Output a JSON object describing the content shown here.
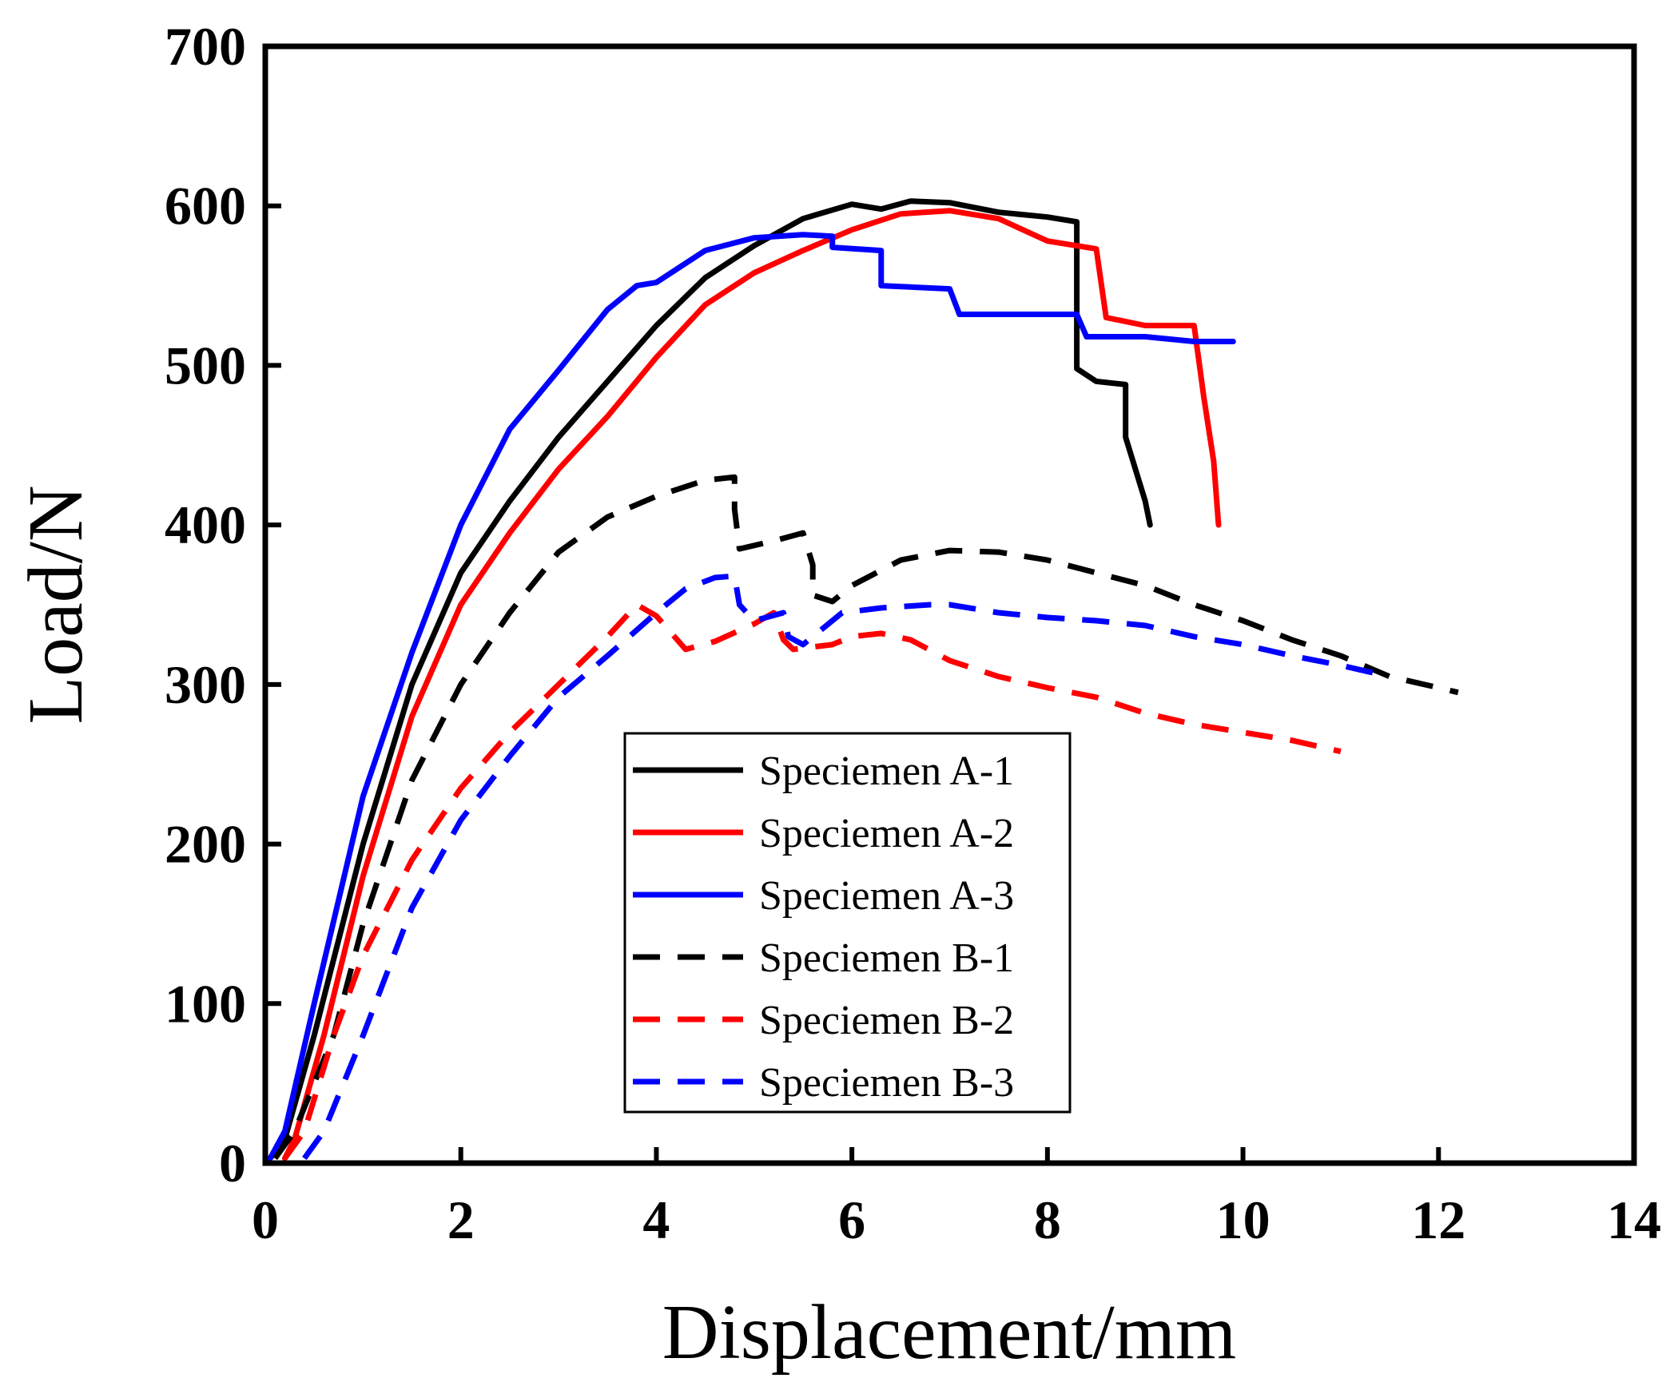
{
  "chart_data": {
    "type": "line",
    "title": "",
    "xlabel": "Displacement/mm",
    "ylabel": "Load/N",
    "xlim": [
      0,
      14
    ],
    "ylim": [
      0,
      700
    ],
    "xticks": [
      0,
      2,
      4,
      6,
      8,
      10,
      12,
      14
    ],
    "yticks": [
      0,
      100,
      200,
      300,
      400,
      500,
      600,
      700
    ],
    "grid": false,
    "legend_position": "center",
    "series": [
      {
        "name": "Speciemen A-1",
        "color": "#000000",
        "style": "solid",
        "points": [
          [
            0.05,
            3
          ],
          [
            0.2,
            15
          ],
          [
            0.5,
            80
          ],
          [
            1.0,
            200
          ],
          [
            1.5,
            300
          ],
          [
            2.0,
            370
          ],
          [
            2.5,
            415
          ],
          [
            3.0,
            455
          ],
          [
            3.5,
            490
          ],
          [
            4.0,
            525
          ],
          [
            4.5,
            555
          ],
          [
            5.0,
            575
          ],
          [
            5.5,
            592
          ],
          [
            6.0,
            601
          ],
          [
            6.3,
            598
          ],
          [
            6.6,
            603
          ],
          [
            7.0,
            602
          ],
          [
            7.5,
            596
          ],
          [
            8.0,
            593
          ],
          [
            8.3,
            590
          ],
          [
            8.3,
            498
          ],
          [
            8.5,
            490
          ],
          [
            8.8,
            488
          ],
          [
            8.8,
            455
          ],
          [
            9.0,
            415
          ],
          [
            9.05,
            400
          ]
        ]
      },
      {
        "name": "Speciemen A-2",
        "color": "#ff0000",
        "style": "solid",
        "points": [
          [
            0.2,
            3
          ],
          [
            0.3,
            15
          ],
          [
            0.6,
            80
          ],
          [
            1.0,
            180
          ],
          [
            1.5,
            280
          ],
          [
            2.0,
            350
          ],
          [
            2.5,
            395
          ],
          [
            3.0,
            435
          ],
          [
            3.5,
            468
          ],
          [
            4.0,
            505
          ],
          [
            4.5,
            538
          ],
          [
            5.0,
            558
          ],
          [
            5.5,
            572
          ],
          [
            6.0,
            585
          ],
          [
            6.5,
            595
          ],
          [
            7.0,
            597
          ],
          [
            7.5,
            592
          ],
          [
            8.0,
            578
          ],
          [
            8.5,
            573
          ],
          [
            8.6,
            530
          ],
          [
            9.0,
            525
          ],
          [
            9.5,
            525
          ],
          [
            9.6,
            480
          ],
          [
            9.7,
            440
          ],
          [
            9.75,
            400
          ]
        ]
      },
      {
        "name": "Speciemen A-3",
        "color": "#0000ff",
        "style": "solid",
        "points": [
          [
            0.05,
            3
          ],
          [
            0.2,
            20
          ],
          [
            0.5,
            100
          ],
          [
            1.0,
            230
          ],
          [
            1.5,
            320
          ],
          [
            2.0,
            400
          ],
          [
            2.5,
            460
          ],
          [
            3.0,
            497
          ],
          [
            3.5,
            535
          ],
          [
            3.8,
            550
          ],
          [
            4.0,
            552
          ],
          [
            4.5,
            572
          ],
          [
            5.0,
            580
          ],
          [
            5.5,
            582
          ],
          [
            5.8,
            581
          ],
          [
            5.8,
            574
          ],
          [
            6.3,
            572
          ],
          [
            6.3,
            550
          ],
          [
            7.0,
            548
          ],
          [
            7.1,
            532
          ],
          [
            8.3,
            532
          ],
          [
            8.4,
            518
          ],
          [
            9.0,
            518
          ],
          [
            9.5,
            515
          ],
          [
            9.9,
            515
          ]
        ]
      },
      {
        "name": "Speciemen B-1",
        "color": "#000000",
        "style": "dashed",
        "points": [
          [
            0.1,
            3
          ],
          [
            0.3,
            20
          ],
          [
            0.7,
            80
          ],
          [
            1.0,
            150
          ],
          [
            1.5,
            240
          ],
          [
            2.0,
            300
          ],
          [
            2.5,
            345
          ],
          [
            3.0,
            383
          ],
          [
            3.5,
            405
          ],
          [
            4.0,
            418
          ],
          [
            4.5,
            428
          ],
          [
            4.8,
            430
          ],
          [
            4.8,
            410
          ],
          [
            4.85,
            385
          ],
          [
            5.2,
            390
          ],
          [
            5.5,
            395
          ],
          [
            5.6,
            375
          ],
          [
            5.6,
            356
          ],
          [
            5.8,
            352
          ],
          [
            6.0,
            362
          ],
          [
            6.5,
            378
          ],
          [
            7.0,
            384
          ],
          [
            7.5,
            383
          ],
          [
            8.0,
            378
          ],
          [
            8.5,
            370
          ],
          [
            9.0,
            362
          ],
          [
            9.5,
            350
          ],
          [
            10.0,
            340
          ],
          [
            10.5,
            328
          ],
          [
            11.0,
            318
          ],
          [
            11.5,
            305
          ],
          [
            12.0,
            298
          ],
          [
            12.2,
            295
          ]
        ]
      },
      {
        "name": "Speciemen B-2",
        "color": "#ff0000",
        "style": "dashed",
        "points": [
          [
            0.2,
            3
          ],
          [
            0.4,
            20
          ],
          [
            0.7,
            80
          ],
          [
            1.0,
            130
          ],
          [
            1.5,
            190
          ],
          [
            2.0,
            235
          ],
          [
            2.5,
            270
          ],
          [
            3.0,
            300
          ],
          [
            3.5,
            330
          ],
          [
            3.8,
            350
          ],
          [
            4.0,
            343
          ],
          [
            4.3,
            322
          ],
          [
            4.6,
            327
          ],
          [
            5.0,
            338
          ],
          [
            5.2,
            345
          ],
          [
            5.3,
            328
          ],
          [
            5.4,
            322
          ],
          [
            5.8,
            325
          ],
          [
            6.0,
            330
          ],
          [
            6.3,
            332
          ],
          [
            6.6,
            328
          ],
          [
            7.0,
            315
          ],
          [
            7.5,
            305
          ],
          [
            8.0,
            298
          ],
          [
            8.5,
            292
          ],
          [
            9.0,
            282
          ],
          [
            9.5,
            275
          ],
          [
            10.0,
            270
          ],
          [
            10.5,
            265
          ],
          [
            11.0,
            258
          ]
        ]
      },
      {
        "name": "Speciemen B-3",
        "color": "#0000ff",
        "style": "dashed",
        "points": [
          [
            0.4,
            3
          ],
          [
            0.6,
            20
          ],
          [
            1.0,
            80
          ],
          [
            1.5,
            160
          ],
          [
            2.0,
            215
          ],
          [
            2.5,
            255
          ],
          [
            3.0,
            292
          ],
          [
            3.5,
            318
          ],
          [
            4.0,
            345
          ],
          [
            4.3,
            360
          ],
          [
            4.6,
            367
          ],
          [
            4.8,
            368
          ],
          [
            4.85,
            350
          ],
          [
            5.0,
            340
          ],
          [
            5.3,
            345
          ],
          [
            5.35,
            330
          ],
          [
            5.5,
            325
          ],
          [
            5.9,
            345
          ],
          [
            6.3,
            348
          ],
          [
            6.8,
            350
          ],
          [
            7.0,
            350
          ],
          [
            7.5,
            345
          ],
          [
            8.0,
            342
          ],
          [
            8.5,
            340
          ],
          [
            9.0,
            337
          ],
          [
            9.5,
            330
          ],
          [
            10.0,
            325
          ],
          [
            10.5,
            318
          ],
          [
            11.0,
            312
          ],
          [
            11.5,
            305
          ]
        ]
      }
    ]
  }
}
